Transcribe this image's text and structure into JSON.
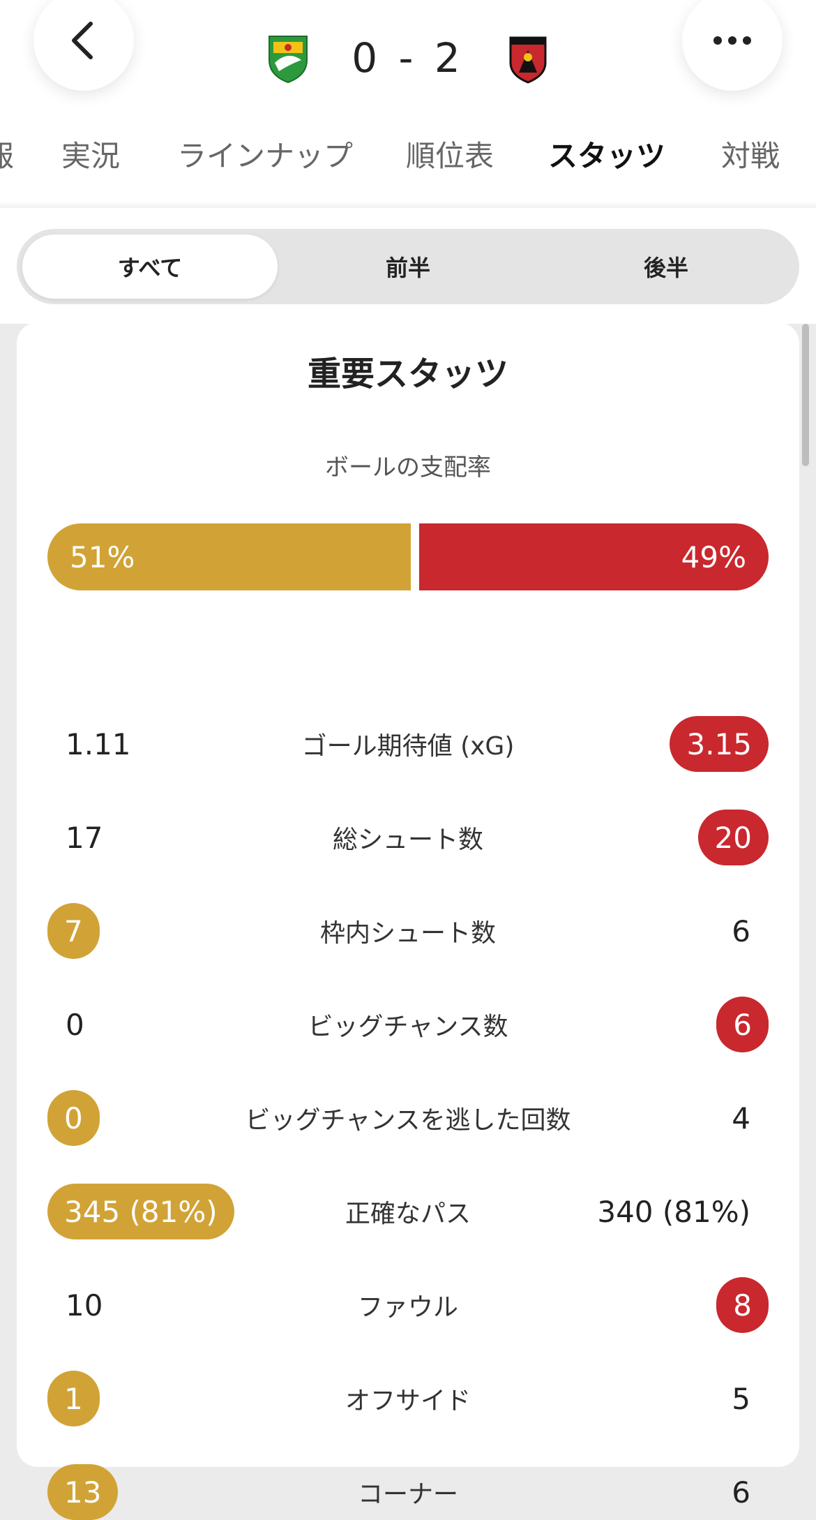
{
  "header": {
    "score": "0 - 2",
    "home_colors": [
      "#f2c316",
      "#2c9a3c"
    ],
    "away_colors": [
      "#c8282e",
      "#111111"
    ]
  },
  "tabs": [
    {
      "label": "報"
    },
    {
      "label": "実況"
    },
    {
      "label": "ラインナップ"
    },
    {
      "label": "順位表"
    },
    {
      "label": "スタッツ",
      "active": true
    },
    {
      "label": "対戦"
    }
  ],
  "segments": [
    {
      "label": "すべて",
      "active": true
    },
    {
      "label": "前半"
    },
    {
      "label": "後半"
    }
  ],
  "card": {
    "title": "重要スタッツ",
    "possession": {
      "label": "ボールの支配率",
      "home": "51%",
      "away": "49%",
      "home_fraction": 0.51
    },
    "stats": [
      {
        "label": "ゴール期待値 (xG)",
        "home": "1.11",
        "away": "3.15",
        "highlight": "away"
      },
      {
        "label": "総シュート数",
        "home": "17",
        "away": "20",
        "highlight": "away"
      },
      {
        "label": "枠内シュート数",
        "home": "7",
        "away": "6",
        "highlight": "home"
      },
      {
        "label": "ビッグチャンス数",
        "home": "0",
        "away": "6",
        "highlight": "away"
      },
      {
        "label": "ビッグチャンスを逃した回数",
        "home": "0",
        "away": "4",
        "highlight": "home"
      },
      {
        "label": "正確なパス",
        "home": "345 (81%)",
        "away": "340 (81%)",
        "highlight": "home"
      },
      {
        "label": "ファウル",
        "home": "10",
        "away": "8",
        "highlight": "away"
      },
      {
        "label": "オフサイド",
        "home": "1",
        "away": "5",
        "highlight": "home"
      },
      {
        "label": "コーナー",
        "home": "13",
        "away": "6",
        "highlight": "home"
      }
    ]
  },
  "colors": {
    "home_accent": "#d1a336",
    "away_accent": "#c8282e"
  }
}
